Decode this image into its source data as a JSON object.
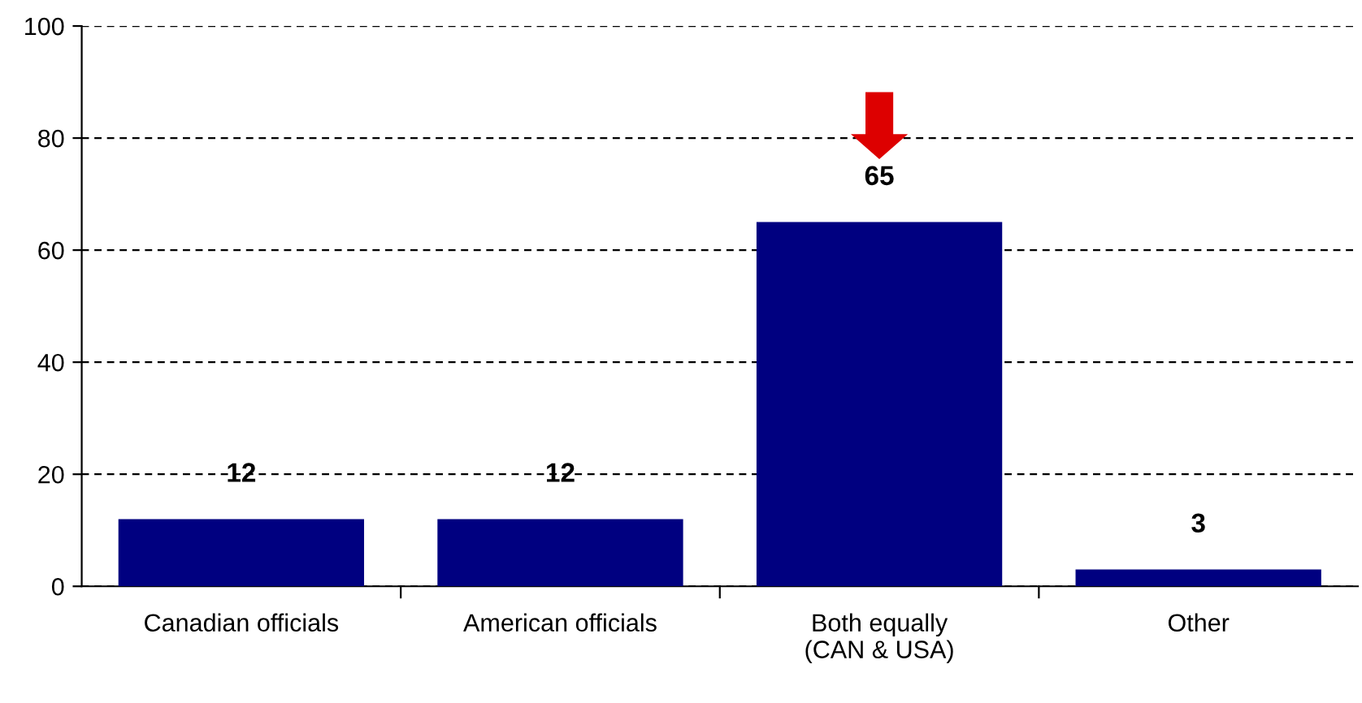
{
  "chart_data": {
    "type": "bar",
    "categories": [
      "Canadian officials",
      "American officials",
      "Both equally\n(CAN & USA)",
      "Other"
    ],
    "values": [
      12,
      12,
      65,
      3
    ],
    "color": "#000080",
    "ylim": [
      0,
      100
    ],
    "yticks": [
      0,
      20,
      40,
      60,
      80,
      100
    ],
    "grid": "y",
    "data_labels": true
  }
}
